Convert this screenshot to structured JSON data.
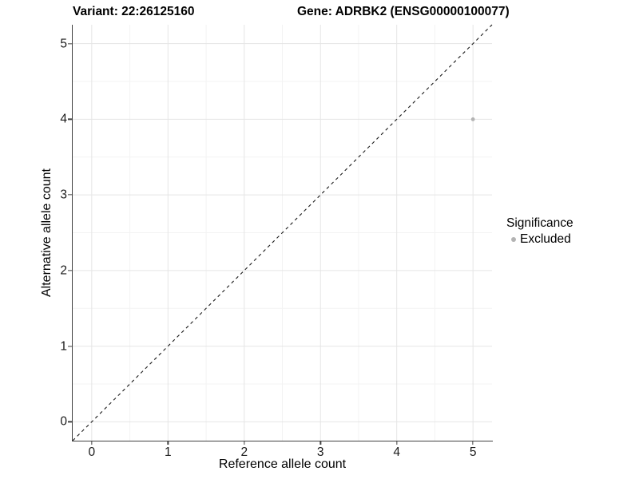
{
  "chart_data": {
    "type": "scatter",
    "titles": {
      "left": "Variant: 22:26125160",
      "right": "Gene: ADRBK2 (ENSG00000100077)"
    },
    "xlabel": "Reference allele count",
    "ylabel": "Alternative allele count",
    "xlim": [
      -0.25,
      5.25
    ],
    "ylim": [
      -0.25,
      5.25
    ],
    "xticks": [
      0,
      1,
      2,
      3,
      4,
      5
    ],
    "yticks": [
      0,
      1,
      2,
      3,
      4,
      5
    ],
    "xticks_minor": [
      0.5,
      1.5,
      2.5,
      3.5,
      4.5
    ],
    "yticks_minor": [
      0.5,
      1.5,
      2.5,
      3.5,
      4.5
    ],
    "grid": "major-and-minor",
    "points": [
      {
        "x": 5,
        "y": 4,
        "series": "Excluded"
      }
    ],
    "reference_line": {
      "kind": "identity",
      "x0": -0.25,
      "y0": -0.25,
      "x1": 5.25,
      "y1": 5.25,
      "style": "dashed",
      "color": "#1a1a1a"
    },
    "legend": {
      "position": "right",
      "title": "Significance",
      "entries": [
        {
          "label": "Excluded",
          "color": "#b3b3b3"
        }
      ]
    },
    "colors": {
      "point": "#b3b3b3",
      "grid_major": "#e5e5e5",
      "grid_minor": "#f3f3f3",
      "axis_line": "#404040",
      "tick_text": "#1a1a1a",
      "background": "#ffffff"
    }
  }
}
